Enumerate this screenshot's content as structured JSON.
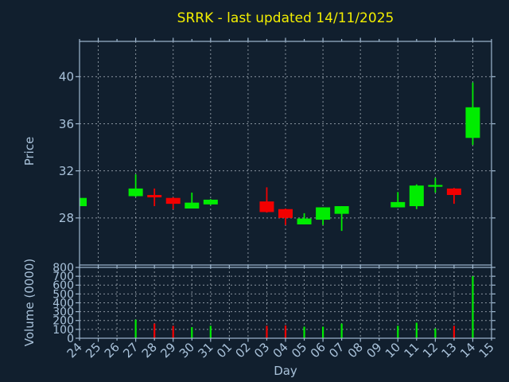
{
  "title": "SRRK - last updated 14/11/2025",
  "colors": {
    "background": "#111f2e",
    "axis": "#9fb8d0",
    "label": "#a9c2da",
    "grid": "#c9d2da",
    "title": "#f2ee00",
    "up": "#00ed00",
    "down": "#f20000"
  },
  "chart_data": [
    {
      "type": "candlestick",
      "title": "SRRK - last updated 14/11/2025",
      "xlabel": "Day",
      "ylabel": "Price",
      "x_tick_labels": [
        "24",
        "25",
        "26",
        "27",
        "28",
        "29",
        "30",
        "31",
        "01",
        "02",
        "03",
        "04",
        "05",
        "06",
        "07",
        "08",
        "09",
        "10",
        "11",
        "12",
        "13",
        "14",
        "15"
      ],
      "ylim": [
        24.0,
        43.0
      ],
      "yticks": [
        28,
        32,
        36,
        40
      ],
      "grid": true,
      "legend": "none",
      "candles": [
        {
          "day": "24",
          "open": 29.0,
          "high": 29.7,
          "low": 29.0,
          "close": 29.7,
          "dir": "up"
        },
        {
          "day": "27",
          "open": 29.85,
          "high": 31.7,
          "low": 29.8,
          "close": 30.5,
          "dir": "up"
        },
        {
          "day": "28",
          "open": 29.95,
          "high": 30.5,
          "low": 29.0,
          "close": 29.75,
          "dir": "down"
        },
        {
          "day": "29",
          "open": 29.7,
          "high": 29.75,
          "low": 28.75,
          "close": 29.2,
          "dir": "down"
        },
        {
          "day": "30",
          "open": 28.8,
          "high": 30.15,
          "low": 28.8,
          "close": 29.3,
          "dir": "up"
        },
        {
          "day": "31",
          "open": 29.15,
          "high": 29.6,
          "low": 29.1,
          "close": 29.55,
          "dir": "up"
        },
        {
          "day": "03",
          "open": 29.4,
          "high": 30.6,
          "low": 28.45,
          "close": 28.5,
          "dir": "down"
        },
        {
          "day": "04",
          "open": 28.75,
          "high": 28.8,
          "low": 27.4,
          "close": 28.0,
          "dir": "down"
        },
        {
          "day": "05",
          "open": 27.45,
          "high": 28.4,
          "low": 27.45,
          "close": 27.95,
          "dir": "up"
        },
        {
          "day": "06",
          "open": 27.85,
          "high": 28.9,
          "low": 27.4,
          "close": 28.9,
          "dir": "up"
        },
        {
          "day": "07",
          "open": 28.35,
          "high": 29.0,
          "low": 26.9,
          "close": 29.0,
          "dir": "up"
        },
        {
          "day": "10",
          "open": 28.9,
          "high": 30.2,
          "low": 28.9,
          "close": 29.35,
          "dir": "up"
        },
        {
          "day": "11",
          "open": 29.0,
          "high": 30.85,
          "low": 28.75,
          "close": 30.75,
          "dir": "up"
        },
        {
          "day": "12",
          "open": 30.65,
          "high": 31.4,
          "low": 30.15,
          "close": 30.8,
          "dir": "up"
        },
        {
          "day": "13",
          "open": 30.5,
          "high": 30.55,
          "low": 29.2,
          "close": 29.95,
          "dir": "down"
        },
        {
          "day": "14",
          "open": 34.8,
          "high": 39.5,
          "low": 34.2,
          "close": 37.4,
          "dir": "up"
        }
      ]
    },
    {
      "type": "bar",
      "xlabel": "Day",
      "ylabel": "Volume (0000)",
      "x_tick_labels": [
        "24",
        "25",
        "26",
        "27",
        "28",
        "29",
        "30",
        "31",
        "01",
        "02",
        "03",
        "04",
        "05",
        "06",
        "07",
        "08",
        "09",
        "10",
        "11",
        "12",
        "13",
        "14",
        "15"
      ],
      "ylim": [
        0,
        800
      ],
      "yticks": [
        0,
        100,
        200,
        300,
        400,
        500,
        600,
        700,
        800
      ],
      "grid": true,
      "bars": [
        {
          "day": "24",
          "value": 0,
          "dir": "up"
        },
        {
          "day": "27",
          "value": 210,
          "dir": "up"
        },
        {
          "day": "28",
          "value": 165,
          "dir": "down"
        },
        {
          "day": "29",
          "value": 140,
          "dir": "down"
        },
        {
          "day": "30",
          "value": 125,
          "dir": "up"
        },
        {
          "day": "31",
          "value": 140,
          "dir": "up"
        },
        {
          "day": "03",
          "value": 140,
          "dir": "down"
        },
        {
          "day": "04",
          "value": 145,
          "dir": "down"
        },
        {
          "day": "05",
          "value": 130,
          "dir": "up"
        },
        {
          "day": "06",
          "value": 130,
          "dir": "up"
        },
        {
          "day": "07",
          "value": 165,
          "dir": "up"
        },
        {
          "day": "10",
          "value": 140,
          "dir": "up"
        },
        {
          "day": "11",
          "value": 175,
          "dir": "up"
        },
        {
          "day": "12",
          "value": 110,
          "dir": "up"
        },
        {
          "day": "13",
          "value": 140,
          "dir": "down"
        },
        {
          "day": "14",
          "value": 700,
          "dir": "up"
        }
      ]
    }
  ]
}
